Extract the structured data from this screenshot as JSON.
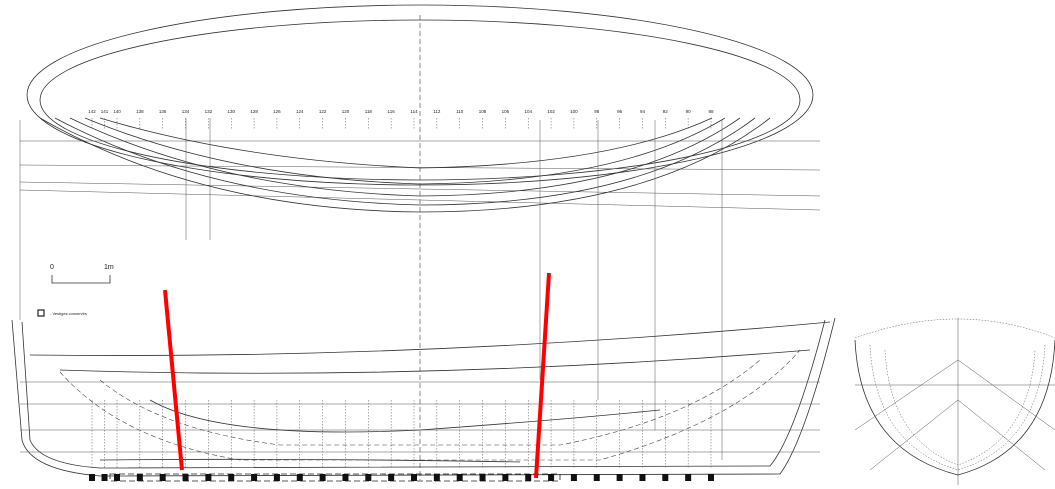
{
  "frame_labels": [
    "142",
    "141",
    "140",
    "138",
    "136",
    "134",
    "132",
    "130",
    "128",
    "126",
    "124",
    "122",
    "120",
    "118",
    "116",
    "114",
    "112",
    "110",
    "108",
    "106",
    "104",
    "102",
    "100",
    "98",
    "96",
    "94",
    "92",
    "90",
    "88"
  ],
  "scale_bar": {
    "start": "0",
    "end": "1m"
  },
  "legend": {
    "text": "- Vestiges conservés"
  }
}
